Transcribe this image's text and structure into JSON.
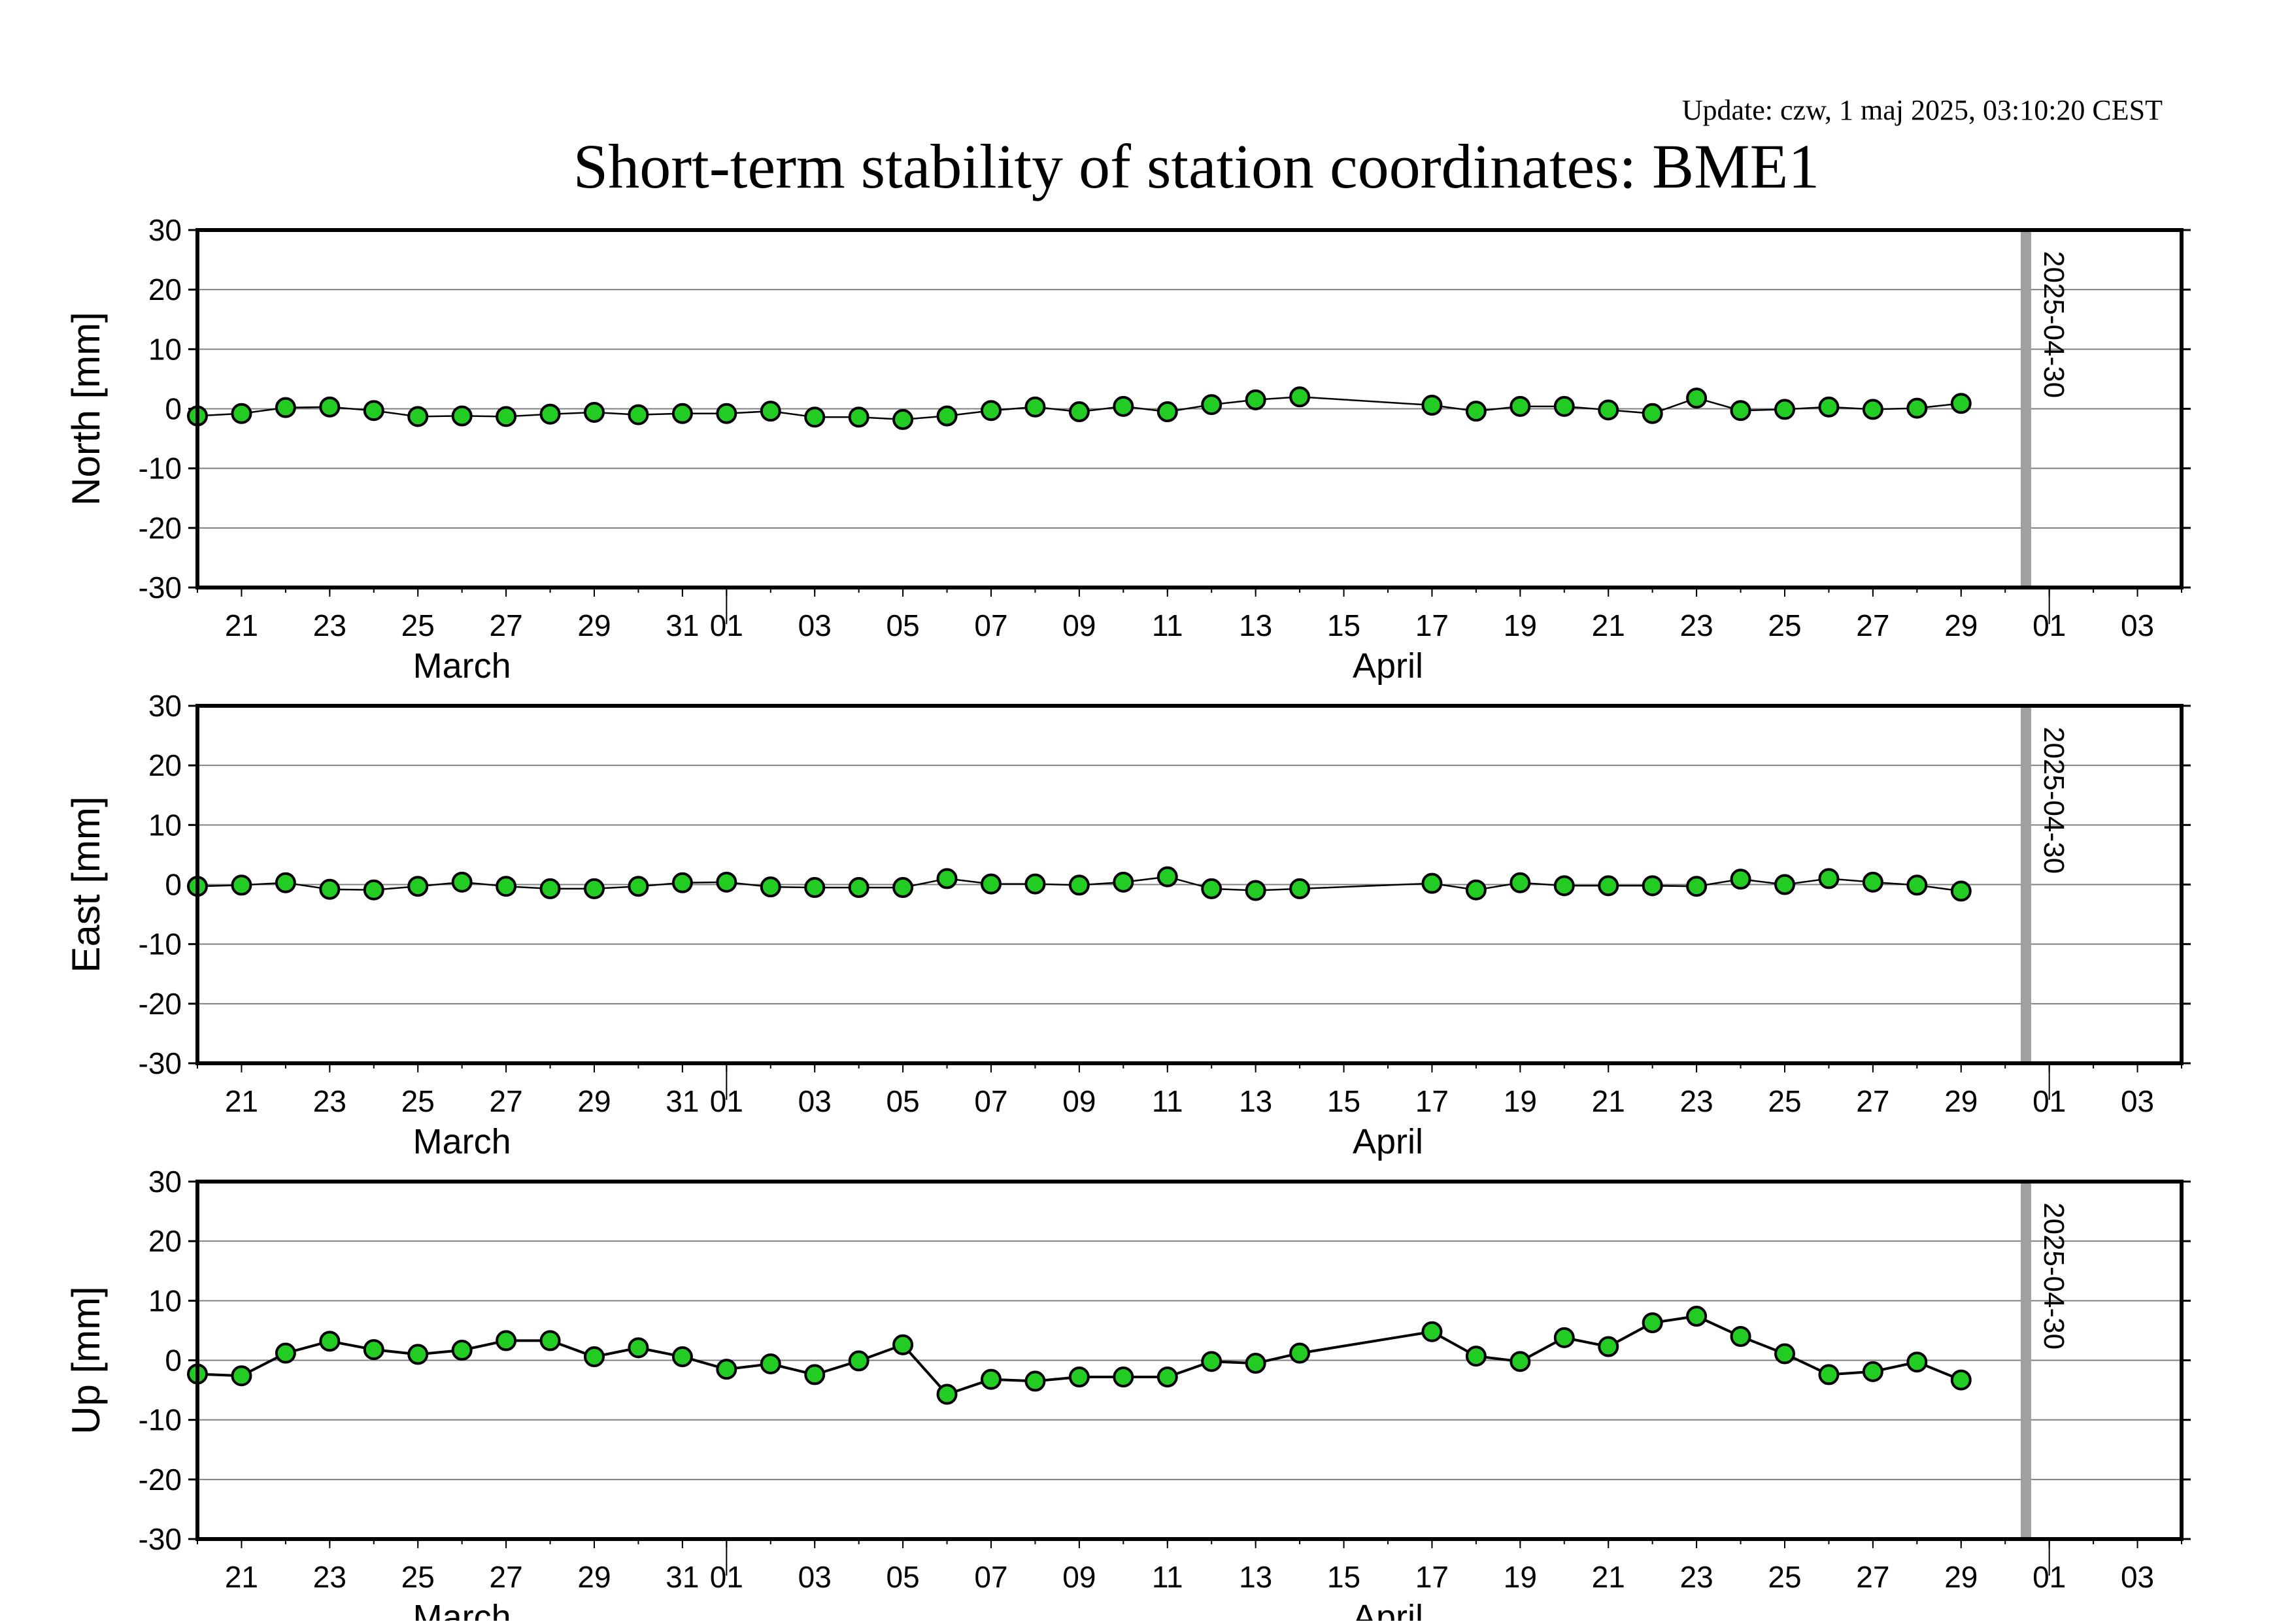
{
  "update_text": "Update: czw, 1 maj 2025, 03:10:20 CEST",
  "title": "Short-term stability of station coordinates: BME1",
  "colors": {
    "update": "#8b1a1a",
    "marker_fill": "#22cc22",
    "marker_stroke": "#000000",
    "grid": "#808080",
    "reference_line": "#a0a0a0"
  },
  "x_axis": {
    "start": "2025-03-20",
    "end": "2025-05-04",
    "tick_labels": [
      {
        "date": "2025-03-21",
        "label": "21"
      },
      {
        "date": "2025-03-23",
        "label": "23"
      },
      {
        "date": "2025-03-25",
        "label": "25"
      },
      {
        "date": "2025-03-27",
        "label": "27"
      },
      {
        "date": "2025-03-29",
        "label": "29"
      },
      {
        "date": "2025-03-31",
        "label": "31"
      },
      {
        "date": "2025-04-01",
        "label": "01"
      },
      {
        "date": "2025-04-03",
        "label": "03"
      },
      {
        "date": "2025-04-05",
        "label": "05"
      },
      {
        "date": "2025-04-07",
        "label": "07"
      },
      {
        "date": "2025-04-09",
        "label": "09"
      },
      {
        "date": "2025-04-11",
        "label": "11"
      },
      {
        "date": "2025-04-13",
        "label": "13"
      },
      {
        "date": "2025-04-15",
        "label": "15"
      },
      {
        "date": "2025-04-17",
        "label": "17"
      },
      {
        "date": "2025-04-19",
        "label": "19"
      },
      {
        "date": "2025-04-21",
        "label": "21"
      },
      {
        "date": "2025-04-23",
        "label": "23"
      },
      {
        "date": "2025-04-25",
        "label": "25"
      },
      {
        "date": "2025-04-27",
        "label": "27"
      },
      {
        "date": "2025-04-29",
        "label": "29"
      },
      {
        "date": "2025-05-01",
        "label": "01"
      },
      {
        "date": "2025-05-03",
        "label": "03"
      }
    ],
    "month_labels": [
      {
        "date": "2025-03-26",
        "label": "March"
      },
      {
        "date": "2025-04-16",
        "label": "April"
      }
    ],
    "month_boundaries": [
      "2025-04-01",
      "2025-05-01"
    ]
  },
  "reference_line": {
    "date": "2025-04-30",
    "label": "2025-04-30"
  },
  "chart_data": [
    {
      "type": "line",
      "ylabel": "North [mm]",
      "ylim": [
        -30,
        30
      ],
      "yticks": [
        30,
        20,
        10,
        0,
        -10,
        -20,
        -30
      ],
      "grid": true,
      "x": [
        "2025-03-20",
        "2025-03-21",
        "2025-03-22",
        "2025-03-23",
        "2025-03-24",
        "2025-03-25",
        "2025-03-26",
        "2025-03-27",
        "2025-03-28",
        "2025-03-29",
        "2025-03-30",
        "2025-03-31",
        "2025-04-01",
        "2025-04-02",
        "2025-04-03",
        "2025-04-04",
        "2025-04-05",
        "2025-04-06",
        "2025-04-07",
        "2025-04-08",
        "2025-04-09",
        "2025-04-10",
        "2025-04-11",
        "2025-04-12",
        "2025-04-13",
        "2025-04-14",
        "2025-04-17",
        "2025-04-18",
        "2025-04-19",
        "2025-04-20",
        "2025-04-21",
        "2025-04-22",
        "2025-04-23",
        "2025-04-24",
        "2025-04-25",
        "2025-04-26",
        "2025-04-27",
        "2025-04-28",
        "2025-04-29"
      ],
      "y": [
        -1.2,
        -0.8,
        0.2,
        0.3,
        -0.3,
        -1.3,
        -1.2,
        -1.3,
        -0.9,
        -0.6,
        -1.0,
        -0.8,
        -0.8,
        -0.4,
        -1.4,
        -1.4,
        -1.8,
        -1.2,
        -0.3,
        0.3,
        -0.5,
        0.4,
        -0.5,
        0.7,
        1.5,
        2.0,
        0.6,
        -0.4,
        0.4,
        0.4,
        -0.2,
        -0.8,
        1.8,
        -0.3,
        -0.1,
        0.3,
        -0.1,
        0.1,
        0.9
      ]
    },
    {
      "type": "line",
      "ylabel": "East [mm]",
      "ylim": [
        -30,
        30
      ],
      "yticks": [
        30,
        20,
        10,
        0,
        -10,
        -20,
        -30
      ],
      "grid": true,
      "x": [
        "2025-03-20",
        "2025-03-21",
        "2025-03-22",
        "2025-03-23",
        "2025-03-24",
        "2025-03-25",
        "2025-03-26",
        "2025-03-27",
        "2025-03-28",
        "2025-03-29",
        "2025-03-30",
        "2025-03-31",
        "2025-04-01",
        "2025-04-02",
        "2025-04-03",
        "2025-04-04",
        "2025-04-05",
        "2025-04-06",
        "2025-04-07",
        "2025-04-08",
        "2025-04-09",
        "2025-04-10",
        "2025-04-11",
        "2025-04-12",
        "2025-04-13",
        "2025-04-14",
        "2025-04-17",
        "2025-04-18",
        "2025-04-19",
        "2025-04-20",
        "2025-04-21",
        "2025-04-22",
        "2025-04-23",
        "2025-04-24",
        "2025-04-25",
        "2025-04-26",
        "2025-04-27",
        "2025-04-28",
        "2025-04-29"
      ],
      "y": [
        -0.3,
        -0.1,
        0.3,
        -0.8,
        -0.9,
        -0.3,
        0.4,
        -0.3,
        -0.7,
        -0.7,
        -0.3,
        0.3,
        0.4,
        -0.4,
        -0.5,
        -0.5,
        -0.5,
        1.0,
        0.1,
        0.1,
        -0.1,
        0.4,
        1.3,
        -0.7,
        -1.0,
        -0.7,
        0.2,
        -0.9,
        0.3,
        -0.2,
        -0.2,
        -0.2,
        -0.3,
        0.9,
        0.0,
        1.0,
        0.4,
        -0.1,
        -1.1
      ]
    },
    {
      "type": "line",
      "ylabel": "Up [mm]",
      "ylim": [
        -30,
        30
      ],
      "yticks": [
        30,
        20,
        10,
        0,
        -10,
        -20,
        -30
      ],
      "grid": true,
      "x": [
        "2025-03-20",
        "2025-03-21",
        "2025-03-22",
        "2025-03-23",
        "2025-03-24",
        "2025-03-25",
        "2025-03-26",
        "2025-03-27",
        "2025-03-28",
        "2025-03-29",
        "2025-03-30",
        "2025-03-31",
        "2025-04-01",
        "2025-04-02",
        "2025-04-03",
        "2025-04-04",
        "2025-04-05",
        "2025-04-06",
        "2025-04-07",
        "2025-04-08",
        "2025-04-09",
        "2025-04-10",
        "2025-04-11",
        "2025-04-12",
        "2025-04-13",
        "2025-04-14",
        "2025-04-17",
        "2025-04-18",
        "2025-04-19",
        "2025-04-20",
        "2025-04-21",
        "2025-04-22",
        "2025-04-23",
        "2025-04-24",
        "2025-04-25",
        "2025-04-26",
        "2025-04-27",
        "2025-04-28",
        "2025-04-29"
      ],
      "y": [
        -2.3,
        -2.6,
        1.2,
        3.2,
        1.8,
        1.0,
        1.7,
        3.3,
        3.3,
        0.6,
        2.1,
        0.6,
        -1.5,
        -0.6,
        -2.4,
        -0.1,
        2.6,
        -5.7,
        -3.2,
        -3.5,
        -2.8,
        -2.8,
        -2.8,
        -0.2,
        -0.5,
        1.2,
        4.8,
        0.7,
        -0.2,
        3.8,
        2.3,
        6.3,
        7.4,
        4.0,
        1.1,
        -2.4,
        -1.9,
        -0.3,
        -3.3
      ]
    }
  ]
}
